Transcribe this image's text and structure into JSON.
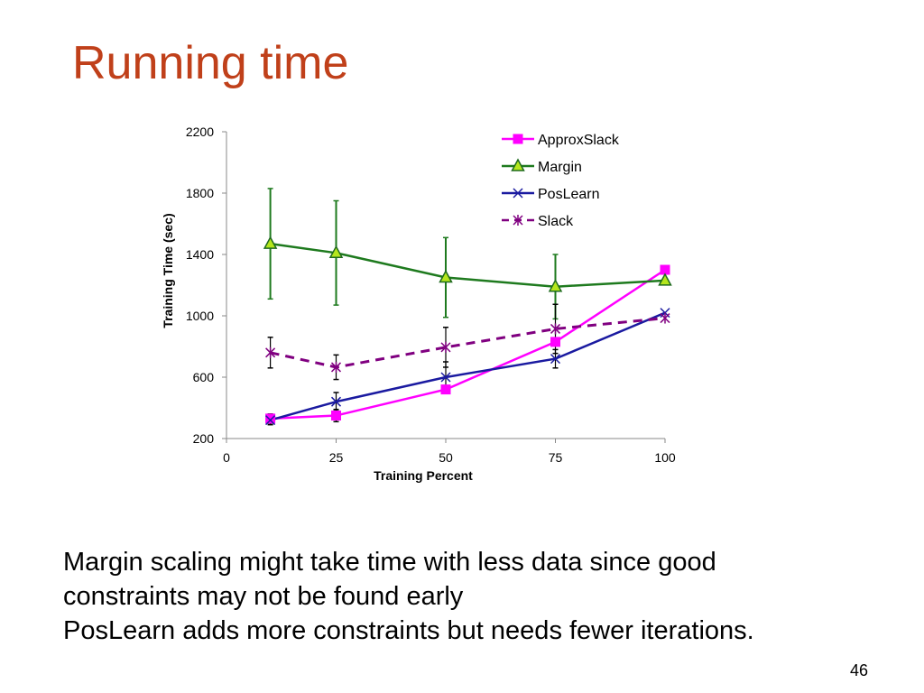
{
  "slide": {
    "title": "Running time",
    "body_lines": [
      "Margin scaling might take time with less data since good",
      "constraints may not be found early",
      "PosLearn adds more constraints but needs fewer iterations."
    ],
    "page_number": "46"
  },
  "chart_data": {
    "type": "line",
    "title": "",
    "xlabel": "Training Percent",
    "ylabel": "Training Time (sec)",
    "xlim": [
      0,
      100
    ],
    "ylim": [
      200,
      2200
    ],
    "x_ticks": [
      0,
      25,
      50,
      75,
      100
    ],
    "y_ticks": [
      200,
      600,
      1000,
      1400,
      1800,
      2200
    ],
    "grid": false,
    "legend_position": "top-right",
    "x": [
      10,
      25,
      50,
      75,
      100
    ],
    "series": [
      {
        "name": "ApproxSlack",
        "color": "#ff00ff",
        "marker": "square",
        "dashed": false,
        "values": [
          330,
          350,
          520,
          830,
          1300
        ],
        "errors": [
          30,
          40,
          0,
          0,
          0
        ]
      },
      {
        "name": "Margin",
        "color": "#1e7a1e",
        "marker": "triangle",
        "dashed": false,
        "values": [
          1470,
          1410,
          1250,
          1190,
          1230
        ],
        "errors": [
          360,
          340,
          260,
          210,
          0
        ]
      },
      {
        "name": "PosLearn",
        "color": "#1a1aa0",
        "marker": "x",
        "dashed": false,
        "values": [
          320,
          440,
          600,
          720,
          1020
        ],
        "errors": [
          30,
          60,
          100,
          60,
          0
        ]
      },
      {
        "name": "Slack",
        "color": "#800080",
        "marker": "star",
        "dashed": true,
        "values": [
          760,
          665,
          795,
          915,
          985
        ],
        "errors": [
          100,
          80,
          130,
          160,
          0
        ]
      }
    ]
  }
}
